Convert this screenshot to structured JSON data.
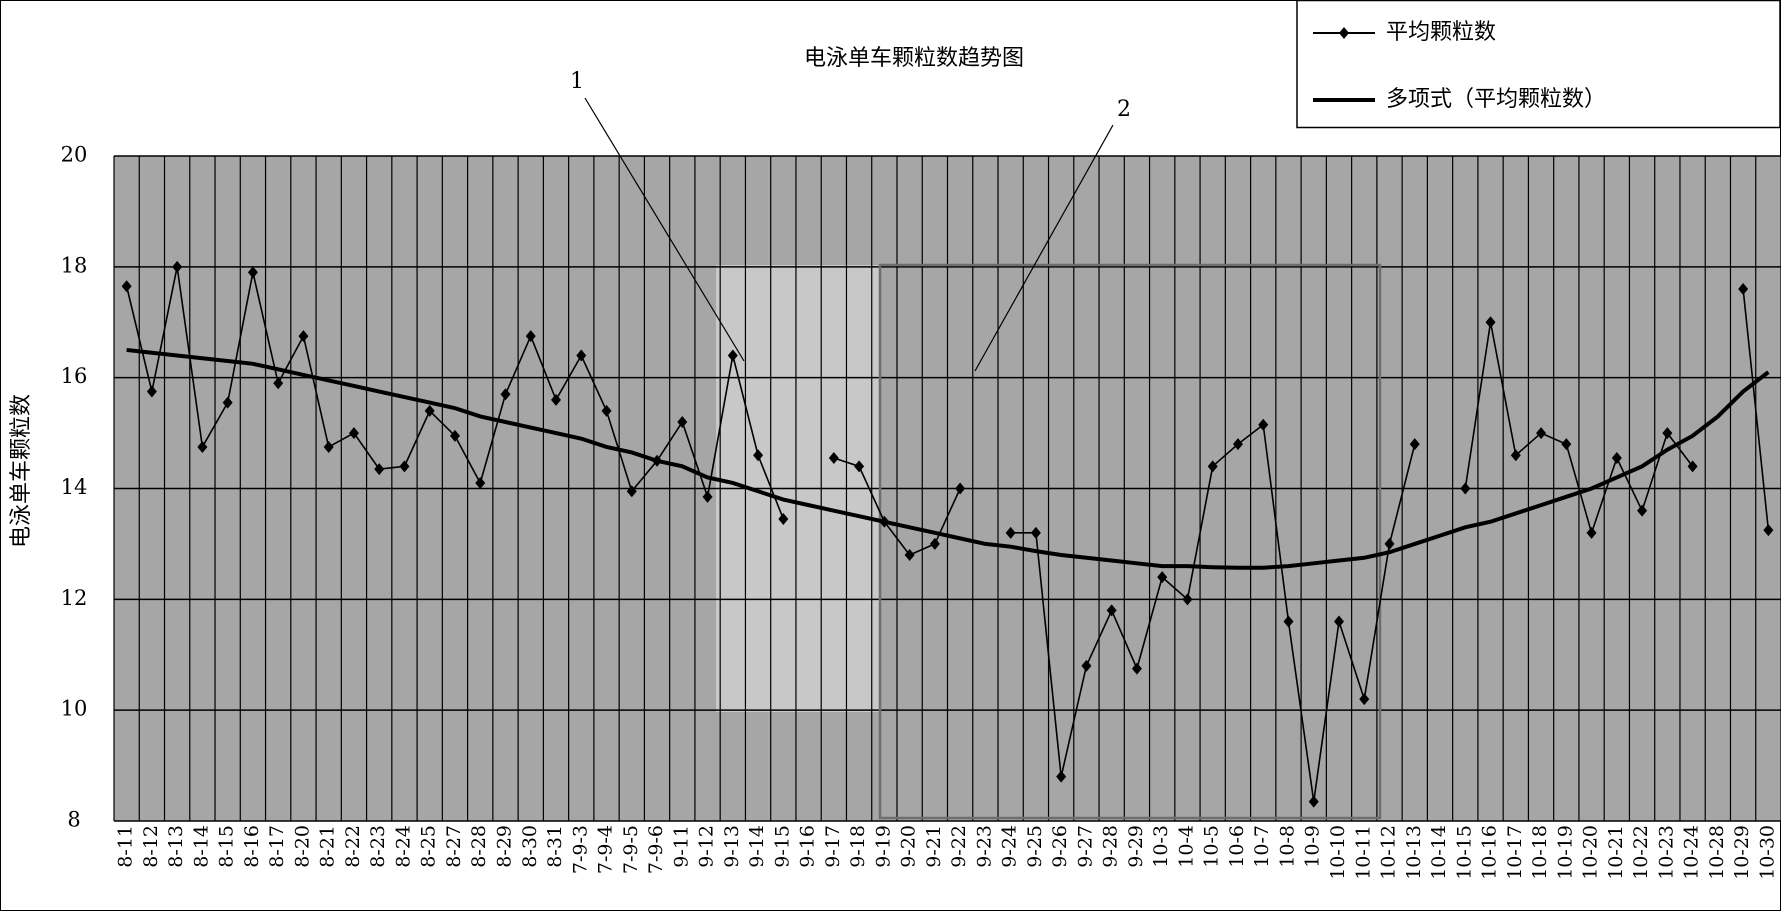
{
  "chart_data": {
    "type": "line",
    "title": "电泳单车颗粒数趋势图",
    "y_label": "电泳单车颗粒数",
    "annotations": [
      "1",
      "2"
    ],
    "categories": [
      "8-11",
      "8-12",
      "8-13",
      "8-14",
      "8-15",
      "8-16",
      "8-17",
      "8-20",
      "8-21",
      "8-22",
      "8-23",
      "8-24",
      "8-25",
      "8-27",
      "8-28",
      "8-29",
      "8-30",
      "8-31",
      "7-9-3",
      "7-9-4",
      "7-9-5",
      "7-9-6",
      "9-11",
      "9-12",
      "9-13",
      "9-14",
      "9-15",
      "9-16",
      "9-17",
      "9-18",
      "9-19",
      "9-20",
      "9-21",
      "9-22",
      "9-23",
      "9-24",
      "9-25",
      "9-26",
      "9-27",
      "9-28",
      "9-29",
      "10-3",
      "10-4",
      "10-5",
      "10-6",
      "10-7",
      "10-8",
      "10-9",
      "10-10",
      "10-11",
      "10-12",
      "10-13",
      "10-14",
      "10-15",
      "10-16",
      "10-17",
      "10-18",
      "10-19",
      "10-20",
      "10-21",
      "10-22",
      "10-23",
      "10-24",
      "10-28",
      "10-29",
      "10-30"
    ],
    "series": [
      {
        "name": "平均颗粒数",
        "color": "#000000",
        "values": [
          17.65,
          15.75,
          18.0,
          14.75,
          15.55,
          17.9,
          15.9,
          16.75,
          14.75,
          15.0,
          14.35,
          14.4,
          15.4,
          14.95,
          14.1,
          15.7,
          16.75,
          15.6,
          16.4,
          15.4,
          13.95,
          14.5,
          15.2,
          13.85,
          16.4,
          14.6,
          13.45,
          null,
          14.55,
          14.4,
          13.4,
          12.8,
          13.0,
          14.0,
          null,
          13.2,
          13.2,
          8.8,
          10.8,
          11.8,
          10.75,
          12.4,
          12.0,
          14.4,
          14.8,
          15.15,
          11.6,
          8.35,
          11.6,
          10.2,
          13.0,
          14.8,
          null,
          14.0,
          17.0,
          14.6,
          15.0,
          14.8,
          13.2,
          14.55,
          13.6,
          15.0,
          14.4,
          null,
          17.6,
          13.25
        ]
      },
      {
        "name": "多项式（平均颗粒数）",
        "color": "#000000",
        "values": [
          16.5,
          16.45,
          16.4,
          16.35,
          16.3,
          16.25,
          16.15,
          16.05,
          15.95,
          15.85,
          15.75,
          15.65,
          15.55,
          15.45,
          15.3,
          15.2,
          15.1,
          15.0,
          14.9,
          14.75,
          14.65,
          14.5,
          14.4,
          14.2,
          14.1,
          13.95,
          13.8,
          13.7,
          13.6,
          13.5,
          13.4,
          13.3,
          13.2,
          13.1,
          13.0,
          12.95,
          12.87,
          12.8,
          12.75,
          12.7,
          12.65,
          12.6,
          12.6,
          12.58,
          12.57,
          12.57,
          12.6,
          12.65,
          12.7,
          12.75,
          12.85,
          13.0,
          13.15,
          13.3,
          13.4,
          13.55,
          13.7,
          13.85,
          14.0,
          14.2,
          14.4,
          14.7,
          14.95,
          15.3,
          15.75,
          16.1
        ]
      }
    ],
    "ylim": [
      8,
      20
    ],
    "yticks": [
      8,
      10,
      12,
      14,
      16,
      18,
      20
    ],
    "grid": true,
    "plot_background": "#a6a6a6",
    "legend": "top-right"
  }
}
